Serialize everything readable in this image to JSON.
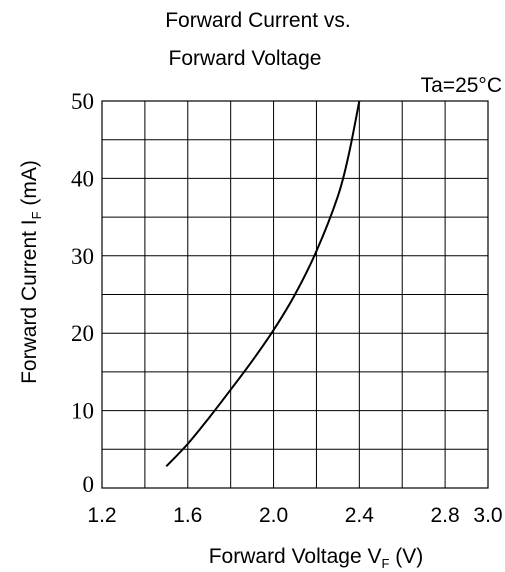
{
  "chart_data": {
    "type": "line",
    "title_line1": "Forward Current vs.",
    "title_line2": "Forward Voltage",
    "condition": "Ta=25°C",
    "xlabel": {
      "prefix": "Forward Voltage  V",
      "subscript": "F",
      "suffix": " (V)"
    },
    "ylabel": {
      "prefix": "Forward Current I",
      "subscript": "F",
      "suffix": " (mA)"
    },
    "xlim": [
      1.2,
      3.0
    ],
    "ylim": [
      0,
      50
    ],
    "x_ticks": [
      1.2,
      1.6,
      2.0,
      2.4,
      2.8,
      3.0
    ],
    "x_tick_labels": [
      "1.2",
      "1.6",
      "2.0",
      "2.4",
      "2.8",
      "3.0"
    ],
    "y_ticks": [
      0,
      10,
      20,
      30,
      40,
      50
    ],
    "y_tick_labels": [
      "0",
      "10",
      "20",
      "30",
      "40",
      "50"
    ],
    "grid": true,
    "grid_x_step": 0.2,
    "grid_y_step": 5,
    "series": [
      {
        "x": [
          1.5,
          1.6,
          1.7,
          1.8,
          1.9,
          2.0,
          2.1,
          2.2,
          2.3,
          2.35,
          2.4
        ],
        "y": [
          2.8,
          5.7,
          9.1,
          12.7,
          16.4,
          20.4,
          25.0,
          30.6,
          37.7,
          43.0,
          50.0
        ]
      }
    ],
    "line_color": "#000000",
    "grid_color": "#000000"
  }
}
